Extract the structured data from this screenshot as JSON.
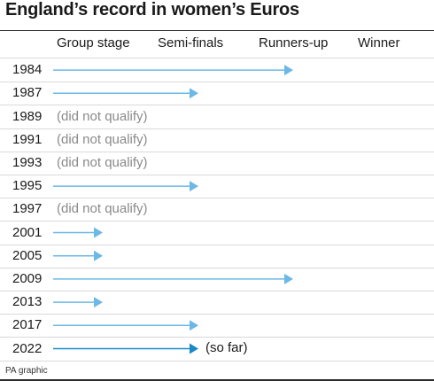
{
  "title": "England’s record in women’s Euros",
  "footer": "PA graphic",
  "colors": {
    "arrow": "#6cb8e6",
    "arrow_highlight": "#1b8ac4",
    "note": "#8a8a8a",
    "divider": "#d9d9d9"
  },
  "chart_data": {
    "type": "table",
    "stages": [
      "Group stage",
      "Semi-finals",
      "Runners-up",
      "Winner"
    ],
    "rows": [
      {
        "year": "1984",
        "stage": "Runners-up"
      },
      {
        "year": "1987",
        "stage": "Semi-finals"
      },
      {
        "year": "1989",
        "stage": null,
        "note": "(did not qualify)"
      },
      {
        "year": "1991",
        "stage": null,
        "note": "(did not qualify)"
      },
      {
        "year": "1993",
        "stage": null,
        "note": "(did not qualify)"
      },
      {
        "year": "1995",
        "stage": "Semi-finals"
      },
      {
        "year": "1997",
        "stage": null,
        "note": "(did not qualify)"
      },
      {
        "year": "2001",
        "stage": "Group stage"
      },
      {
        "year": "2005",
        "stage": "Group stage"
      },
      {
        "year": "2009",
        "stage": "Runners-up"
      },
      {
        "year": "2013",
        "stage": "Group stage"
      },
      {
        "year": "2017",
        "stage": "Semi-finals"
      },
      {
        "year": "2022",
        "stage": "Semi-finals",
        "note": "(so far)",
        "highlight": true
      }
    ]
  }
}
